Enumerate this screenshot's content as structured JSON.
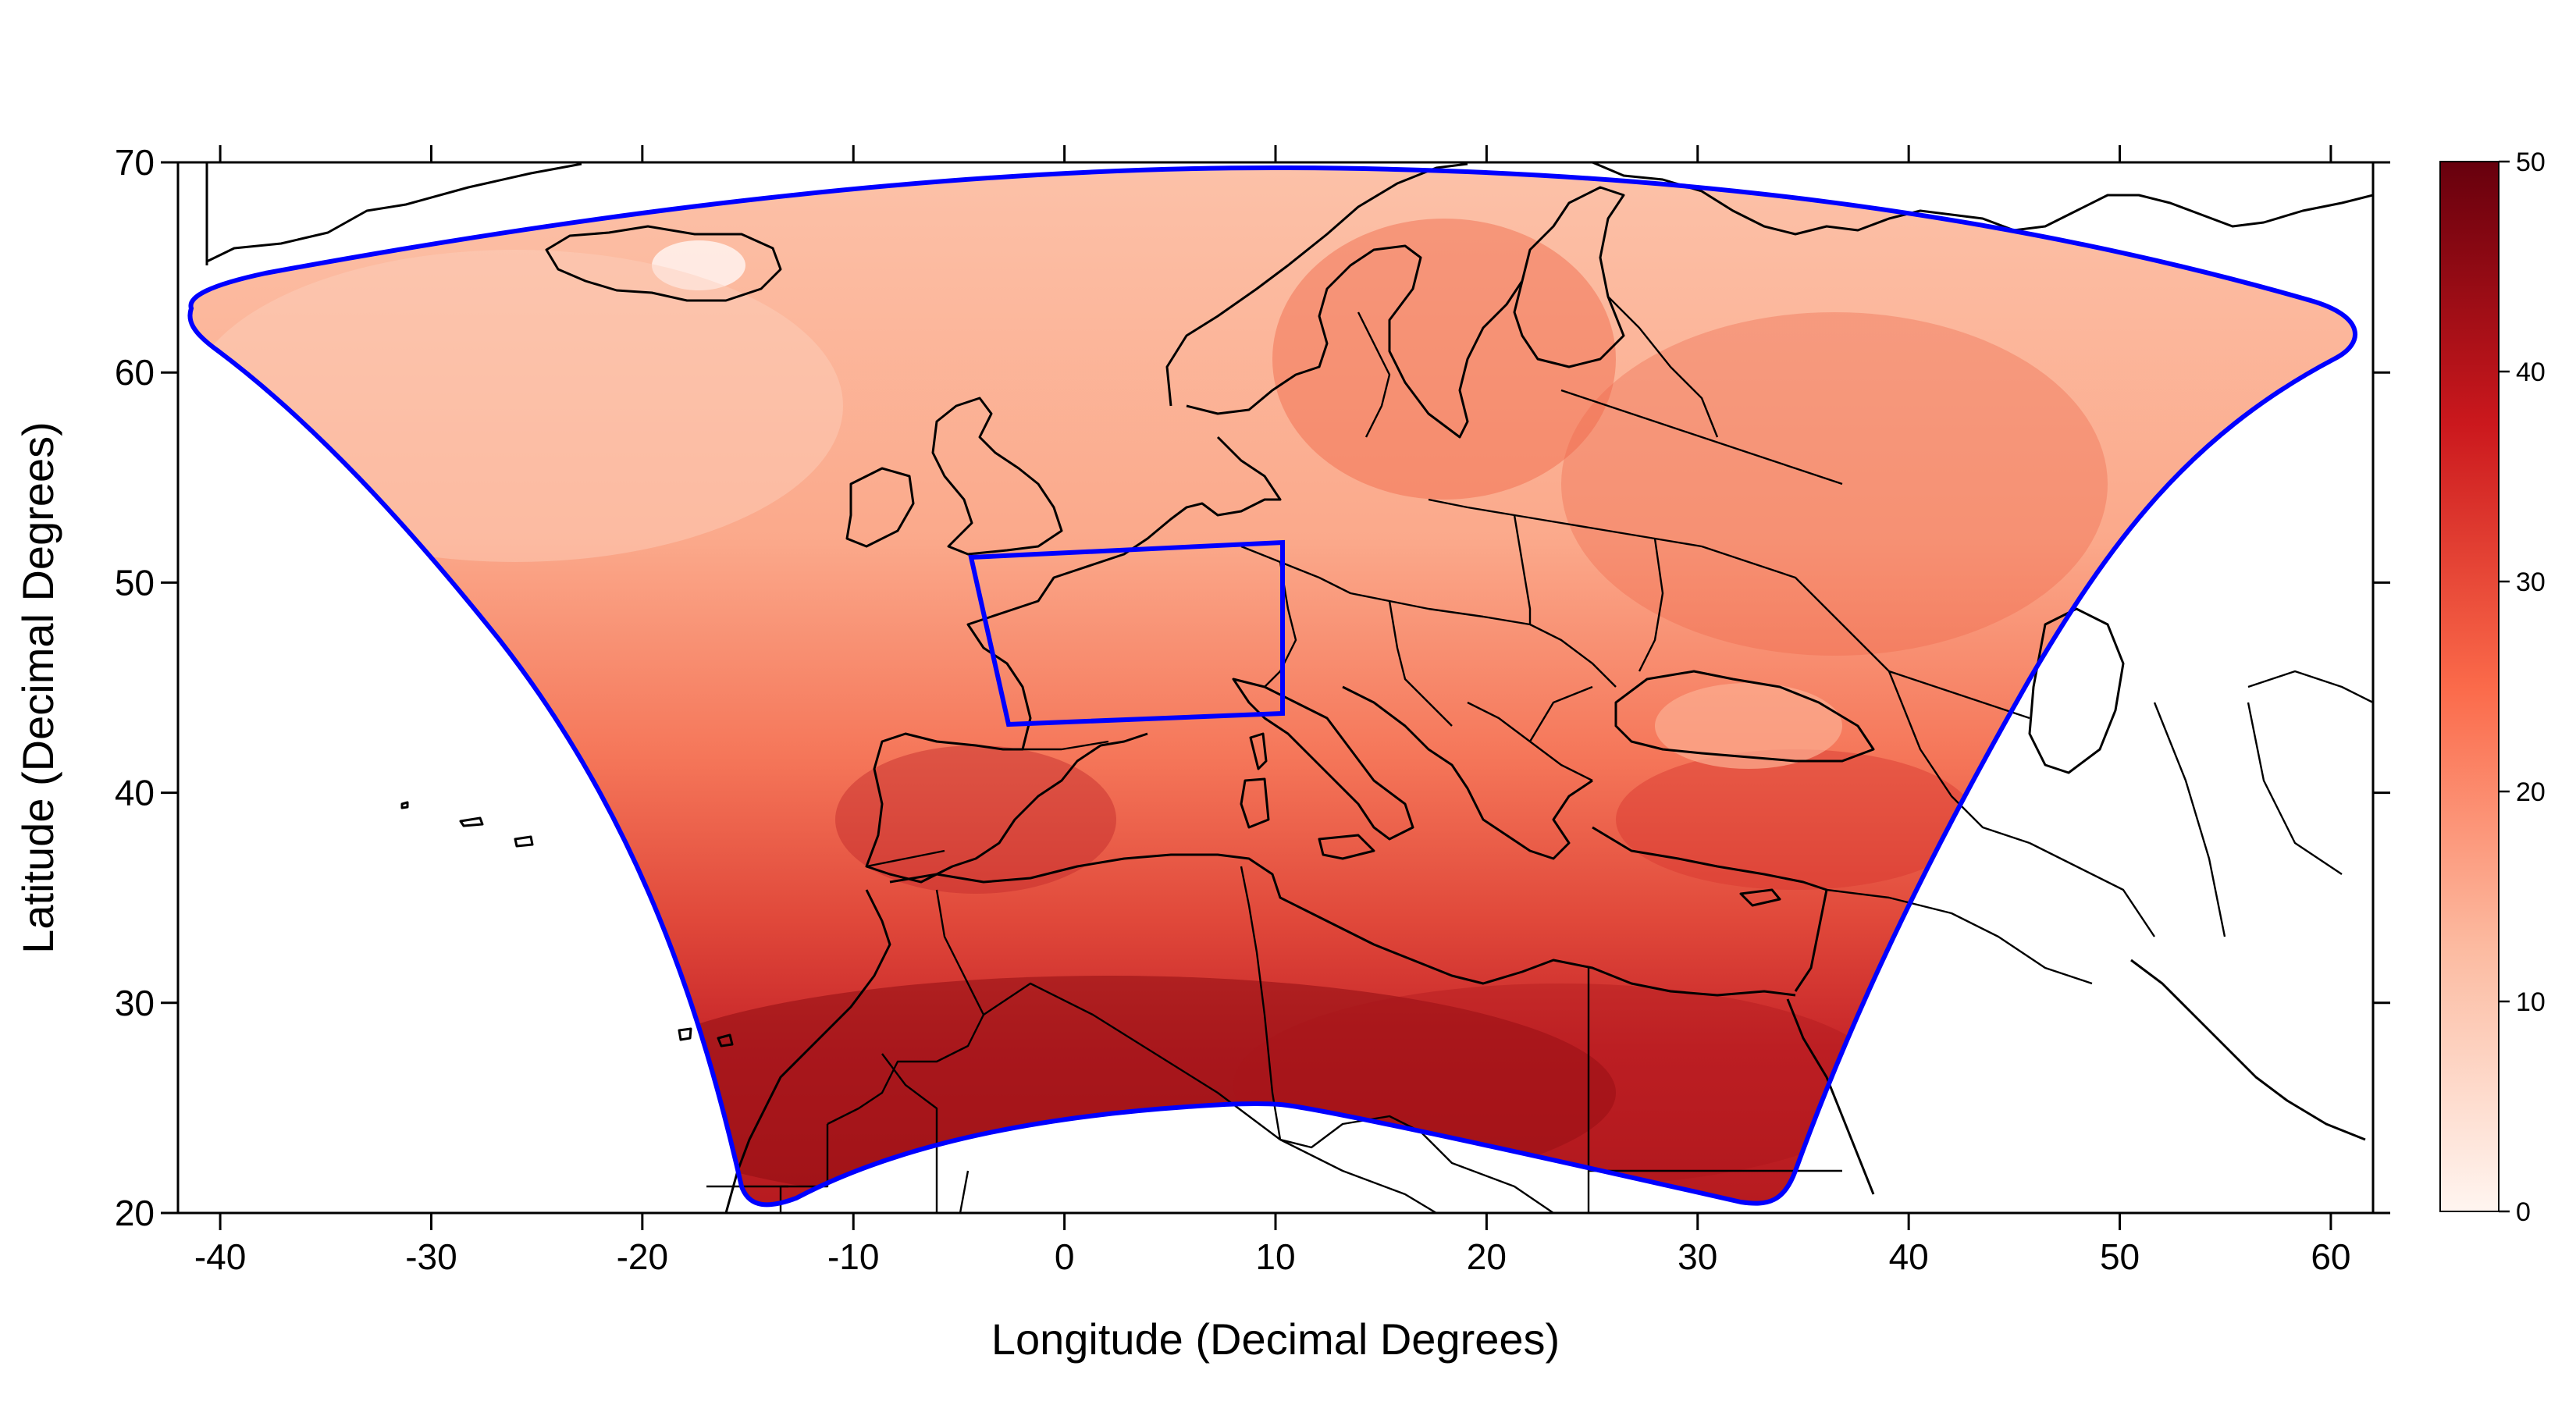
{
  "axes": {
    "x_title": "Longitude (Decimal Degrees)",
    "y_title": "Latitude (Decimal Degrees)",
    "x_ticks": [
      "-40",
      "-30",
      "-20",
      "-10",
      "0",
      "10",
      "20",
      "30",
      "40",
      "50",
      "60"
    ],
    "y_ticks": [
      "20",
      "30",
      "40",
      "50",
      "60",
      "70"
    ],
    "x_range": [
      -42,
      62
    ],
    "y_range": [
      20,
      70
    ]
  },
  "colorbar": {
    "ticks": [
      "0",
      "10",
      "20",
      "30",
      "40",
      "50"
    ],
    "range": [
      0,
      50
    ],
    "colors": [
      "#fff5f0",
      "#fcbba1",
      "#fb6a4a",
      "#cb181d",
      "#67000d"
    ]
  },
  "colors": {
    "domain_outline": "#0000ff",
    "inner_box": "#0000ff",
    "coastline": "#000000"
  }
}
